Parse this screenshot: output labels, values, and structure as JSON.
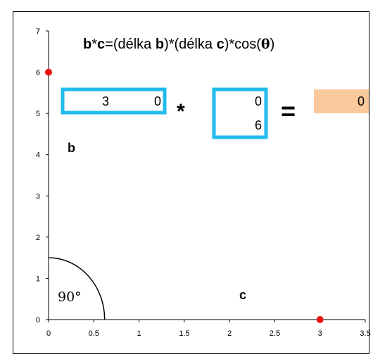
{
  "chart_data": {
    "type": "scatter",
    "xlim": [
      0,
      3.5
    ],
    "ylim": [
      0,
      7
    ],
    "x_ticks": [
      "0",
      "0.5",
      "1",
      "1.5",
      "2",
      "2.5",
      "3",
      "3.5"
    ],
    "y_ticks": [
      "0",
      "1",
      "2",
      "3",
      "4",
      "5",
      "6",
      "7"
    ],
    "grid": false,
    "points": [
      {
        "x": 0,
        "y": 6,
        "color": "#ee1111"
      },
      {
        "x": 3,
        "y": 0,
        "color": "#ee1111"
      }
    ],
    "angle_arc": {
      "radius": 1.5,
      "label": "90°"
    },
    "labels": {
      "b": "b",
      "c": "c"
    },
    "formula": {
      "b": "b",
      "star": "*",
      "c": "c",
      "mid": "=(délka ",
      "b2": "b",
      "mid2": ")*(délka ",
      "c2": "c",
      "mid3": ")*cos(",
      "theta": "θ",
      "end": ")"
    },
    "vector_b": [
      "3",
      "0"
    ],
    "vector_c": [
      "0",
      "6"
    ],
    "multiply_sign": "*",
    "equals_sign": "=",
    "result": "0",
    "colors": {
      "box_border": "#22bbee",
      "result_fill": "#f9c99b",
      "point": "#ee1111"
    }
  }
}
